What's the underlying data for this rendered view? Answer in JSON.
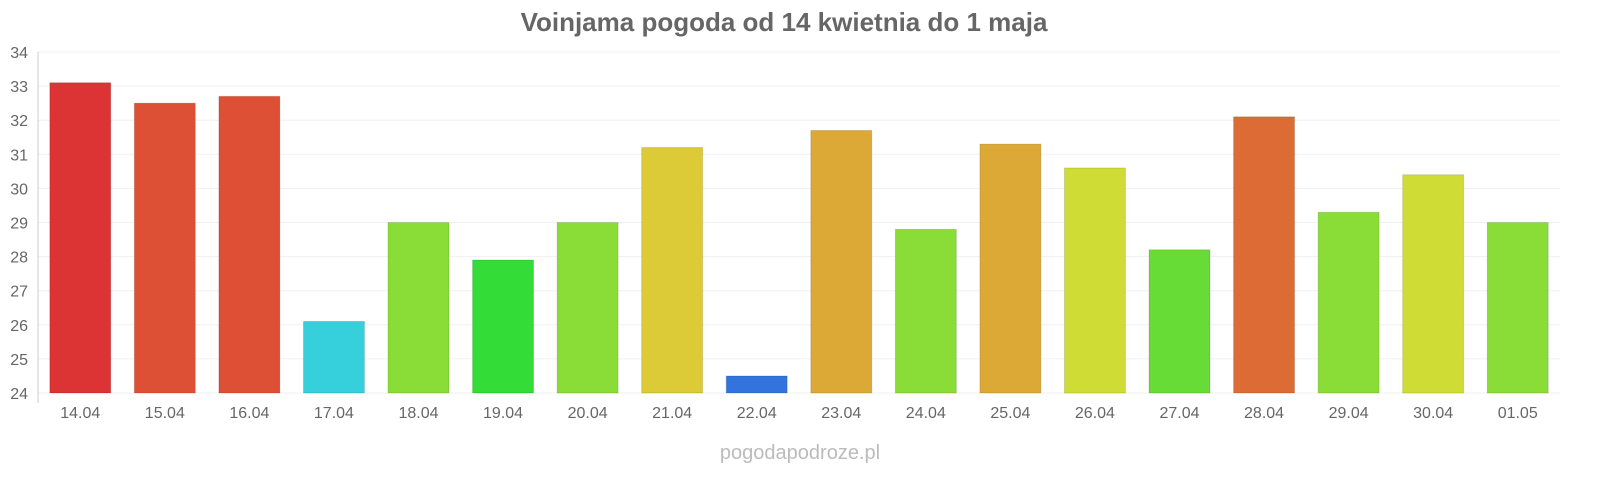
{
  "chart_data": {
    "type": "bar",
    "title": "Voinjama pogoda od 14 kwietnia do 1 maja",
    "xlabel": "",
    "ylabel": "",
    "ylim": [
      24,
      34
    ],
    "yticks": [
      24,
      25,
      26,
      27,
      28,
      29,
      30,
      31,
      32,
      33,
      34
    ],
    "grid": true,
    "categories": [
      "14.04",
      "15.04",
      "16.04",
      "17.04",
      "18.04",
      "19.04",
      "20.04",
      "21.04",
      "22.04",
      "23.04",
      "24.04",
      "25.04",
      "26.04",
      "27.04",
      "28.04",
      "29.04",
      "30.04",
      "01.05"
    ],
    "values": [
      33.1,
      32.5,
      32.7,
      26.1,
      29.0,
      27.9,
      29.0,
      31.2,
      24.5,
      31.7,
      28.8,
      31.3,
      30.6,
      28.2,
      32.1,
      29.3,
      30.4,
      29.0
    ],
    "colors": [
      "#dc3434",
      "#dd5035",
      "#dd5035",
      "#36cfdc",
      "#8adc36",
      "#33dc36",
      "#8adc36",
      "#dccb36",
      "#3373dc",
      "#dca836",
      "#8adc36",
      "#dca836",
      "#d0dc36",
      "#68dc36",
      "#dd6b35",
      "#8adc36",
      "#d0dc36",
      "#8adc36"
    ]
  },
  "watermark": "pogodapodroze.pl"
}
